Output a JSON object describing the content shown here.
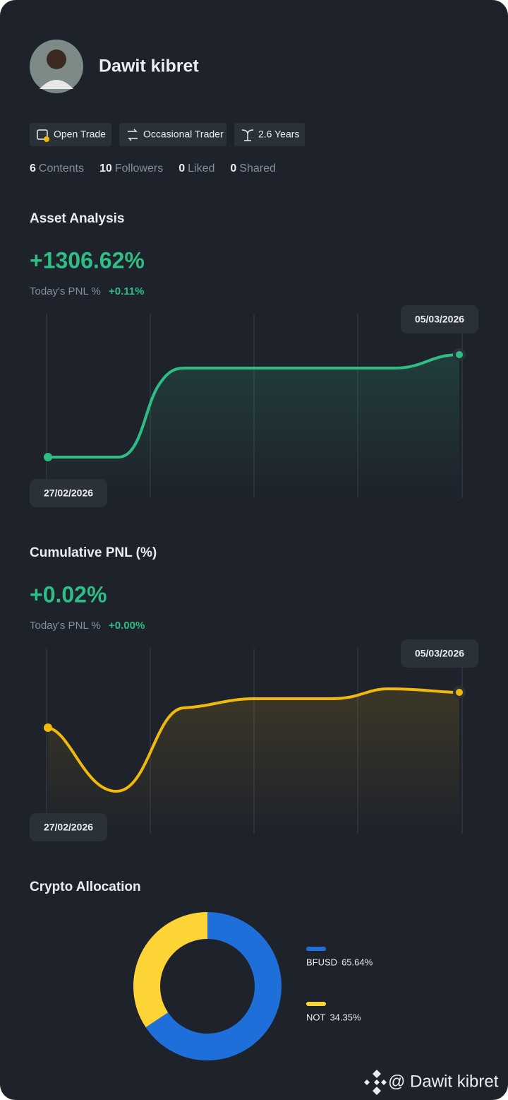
{
  "profile": {
    "name": "Dawit kibret",
    "tags": [
      "Open Trade",
      "Occasional Trader",
      "2.6 Years"
    ],
    "stats": [
      {
        "count": 6,
        "label": "Contents"
      },
      {
        "count": 10,
        "label": "Followers"
      },
      {
        "count": 0,
        "label": "Liked"
      },
      {
        "count": 0,
        "label": "Shared"
      }
    ]
  },
  "asset_analysis": {
    "title": "Asset Analysis",
    "value": "+1306.62%",
    "pnl_label": "Today's PNL %",
    "pnl_value": "+0.11%",
    "start_date": "27/02/2026",
    "end_date": "05/03/2026"
  },
  "cumulative_pnl": {
    "title": "Cumulative PNL (%)",
    "value": "+0.02%",
    "pnl_label": "Today's PNL %",
    "pnl_value": "+0.00%",
    "start_date": "27/02/2026",
    "end_date": "05/03/2026"
  },
  "crypto_allocation": {
    "title": "Crypto Allocation",
    "items": [
      {
        "name": "BFUSD",
        "value": 65.64,
        "value_label": "65.64%",
        "color": "#1f6fdb"
      },
      {
        "name": "NOT",
        "value": 34.35,
        "value_label": "34.35%",
        "color": "#fdd435"
      }
    ]
  },
  "watermark": "@ Dawit kibret"
}
